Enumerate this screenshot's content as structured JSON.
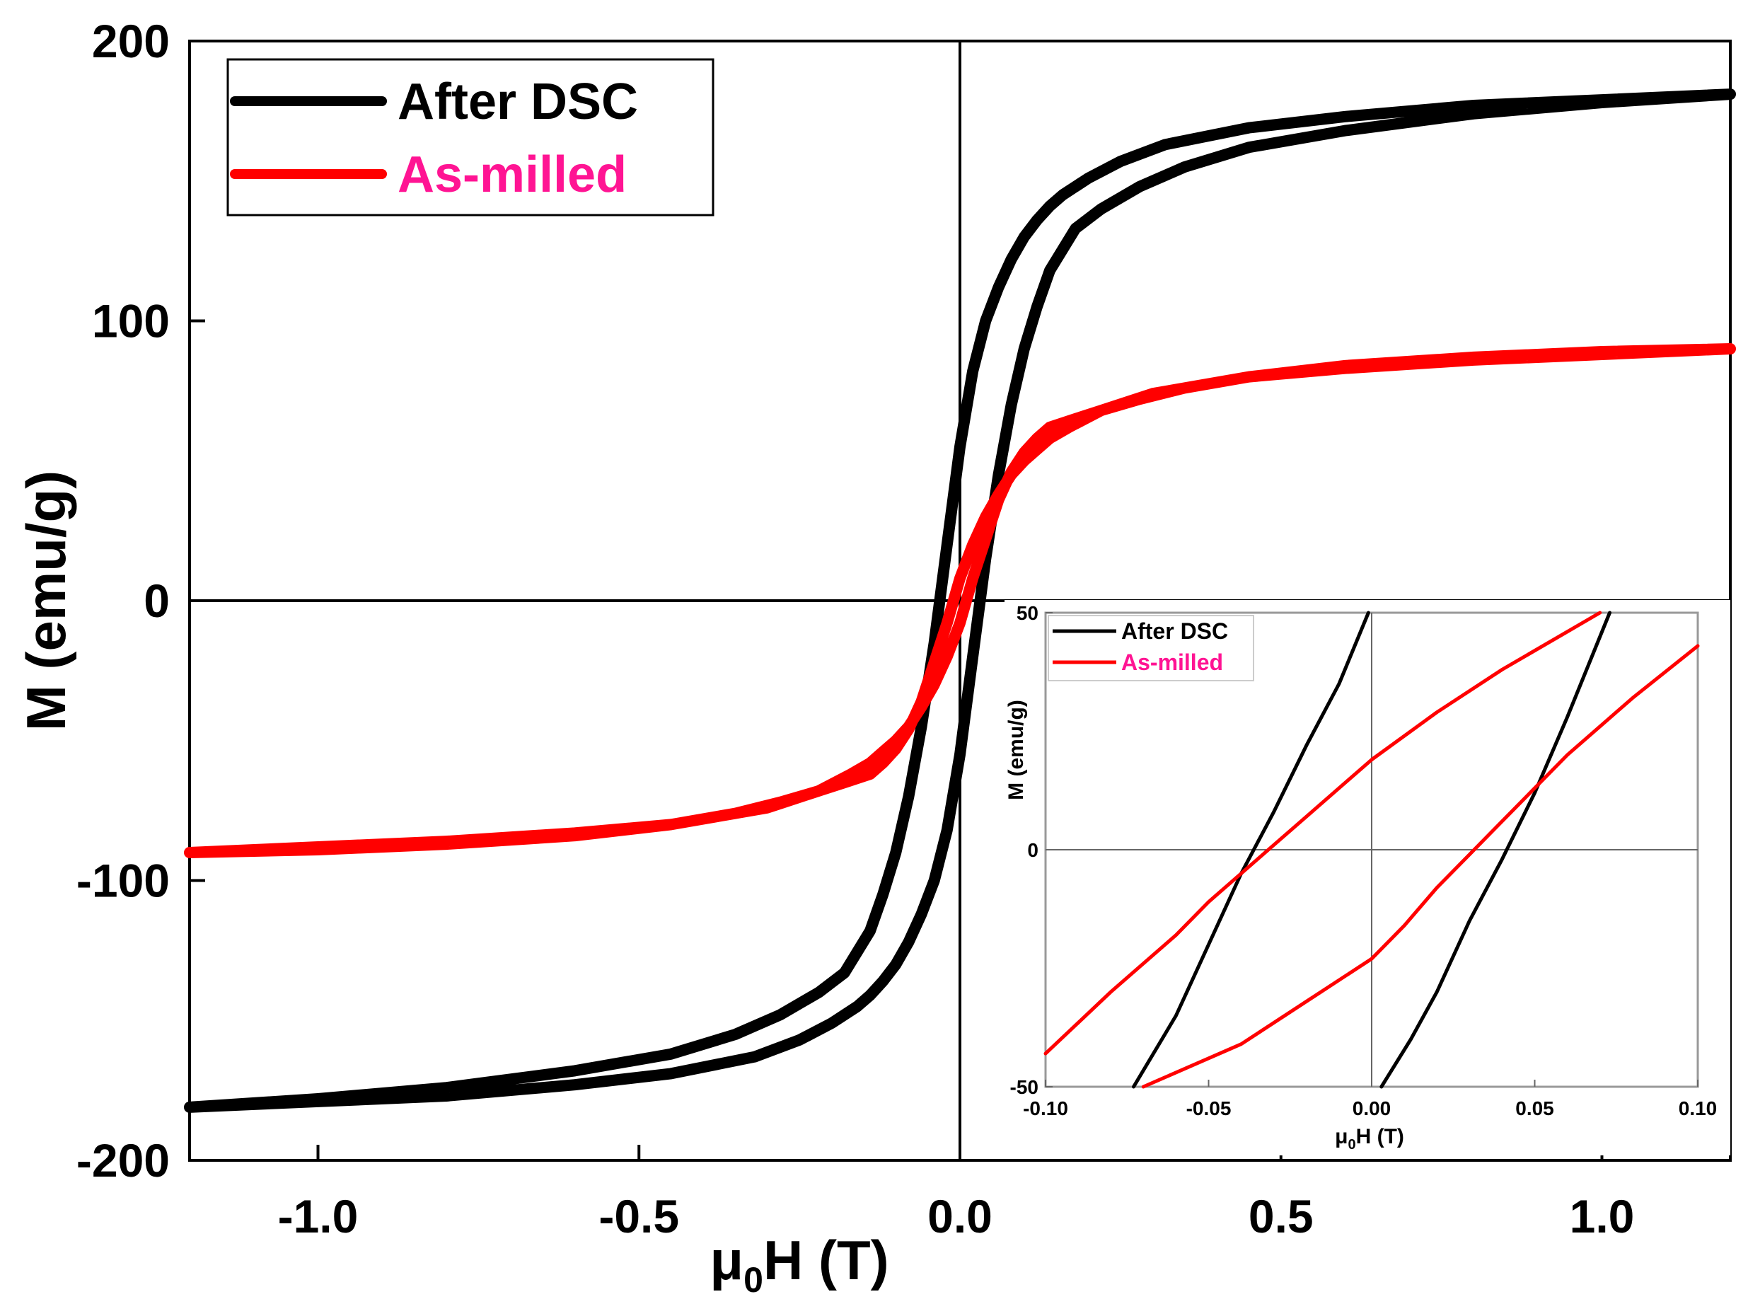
{
  "colors": {
    "after_dsc": "#000000",
    "as_milled": "#ff0000",
    "as_milled_label": "#ff1493"
  },
  "chart_data": [
    {
      "type": "line",
      "xlabel_mu": "μ",
      "xlabel_sub": "0",
      "xlabel_rest": "H (T)",
      "ylabel": "M (emu/g)",
      "xlim": [
        -1.2,
        1.2
      ],
      "ylim": [
        -200,
        200
      ],
      "x_ticks": [
        -1.0,
        -0.5,
        0.0,
        0.5,
        1.0
      ],
      "x_tick_labels": [
        "-1.0",
        "-0.5",
        "0.0",
        "0.5",
        "1.0"
      ],
      "y_ticks": [
        -200,
        -100,
        0,
        100,
        200
      ],
      "y_tick_labels": [
        "-200",
        "-100",
        "0",
        "100",
        "200"
      ],
      "legend_position": "top-left",
      "series": [
        {
          "name": "After DSC",
          "color": "#000000",
          "x": [
            -1.2,
            -1.0,
            -0.8,
            -0.6,
            -0.45,
            -0.35,
            -0.28,
            -0.22,
            -0.18,
            -0.14,
            -0.12,
            -0.1,
            -0.08,
            -0.06,
            -0.04,
            -0.02,
            0.0,
            0.02,
            0.04,
            0.06,
            0.08,
            0.1,
            0.12,
            0.14,
            0.16,
            0.2,
            0.25,
            0.32,
            0.45,
            0.6,
            0.8,
            1.0,
            1.2,
            1.2,
            1.0,
            0.8,
            0.6,
            0.45,
            0.35,
            0.28,
            0.22,
            0.18,
            0.14,
            0.12,
            0.1,
            0.08,
            0.06,
            0.04,
            0.02,
            0.0,
            -0.02,
            -0.04,
            -0.06,
            -0.08,
            -0.1,
            -0.12,
            -0.14,
            -0.16,
            -0.2,
            -0.25,
            -0.32,
            -0.45,
            -0.6,
            -0.8,
            -1.0,
            -1.2
          ],
          "y": [
            -181,
            -178,
            -174,
            -168,
            -162,
            -155,
            -148,
            -140,
            -133,
            -118,
            -105,
            -90,
            -70,
            -45,
            -15,
            20,
            55,
            82,
            100,
            112,
            122,
            130,
            136,
            141,
            145,
            151,
            157,
            163,
            169,
            173,
            177,
            179,
            181,
            181,
            178,
            174,
            168,
            162,
            155,
            148,
            140,
            133,
            118,
            105,
            90,
            70,
            45,
            15,
            -20,
            -55,
            -82,
            -100,
            -112,
            -122,
            -130,
            -136,
            -141,
            -145,
            -151,
            -157,
            -163,
            -169,
            -173,
            -177,
            -179,
            -181
          ]
        },
        {
          "name": "As-milled",
          "color": "#ff0000",
          "x": [
            -1.2,
            -1.0,
            -0.8,
            -0.6,
            -0.45,
            -0.35,
            -0.28,
            -0.22,
            -0.18,
            -0.14,
            -0.12,
            -0.1,
            -0.08,
            -0.06,
            -0.04,
            -0.02,
            0.0,
            0.02,
            0.04,
            0.06,
            0.08,
            0.1,
            0.12,
            0.14,
            0.17,
            0.22,
            0.3,
            0.45,
            0.6,
            0.8,
            1.0,
            1.2,
            1.2,
            1.0,
            0.8,
            0.6,
            0.45,
            0.35,
            0.28,
            0.22,
            0.18,
            0.14,
            0.12,
            0.1,
            0.08,
            0.06,
            0.04,
            0.02,
            0.0,
            -0.02,
            -0.04,
            -0.06,
            -0.08,
            -0.1,
            -0.12,
            -0.14,
            -0.17,
            -0.22,
            -0.3,
            -0.45,
            -0.6,
            -0.8,
            -1.0,
            -1.2
          ],
          "y": [
            -90,
            -88,
            -86,
            -83,
            -80,
            -76,
            -72,
            -68,
            -65,
            -62,
            -58,
            -53,
            -46,
            -36,
            -22,
            -8,
            8,
            20,
            30,
            38,
            45,
            50,
            54,
            58,
            62,
            68,
            74,
            80,
            84,
            87,
            89,
            90,
            90,
            88,
            86,
            83,
            80,
            76,
            72,
            68,
            65,
            62,
            58,
            53,
            46,
            36,
            22,
            8,
            -8,
            -20,
            -30,
            -38,
            -45,
            -50,
            -54,
            -58,
            -62,
            -68,
            -74,
            -80,
            -84,
            -87,
            -89,
            -90
          ]
        }
      ]
    },
    {
      "type": "line",
      "xlabel_mu": "μ",
      "xlabel_sub": "0",
      "xlabel_rest": "H (T)",
      "ylabel": "M (emu/g)",
      "xlim": [
        -0.1,
        0.1
      ],
      "ylim": [
        -50,
        50
      ],
      "x_ticks": [
        -0.1,
        -0.05,
        0.0,
        0.05,
        0.1
      ],
      "x_tick_labels": [
        "-0.10",
        "-0.05",
        "0.00",
        "0.05",
        "0.10"
      ],
      "y_ticks": [
        -50,
        0,
        50
      ],
      "y_tick_labels": [
        "-50",
        "0",
        "50"
      ],
      "legend_position": "top-left",
      "series": [
        {
          "name": "After DSC",
          "color": "#000000",
          "x": [
            -0.073,
            -0.06,
            -0.05,
            -0.04,
            -0.03,
            -0.02,
            -0.01,
            -0.001,
            null,
            0.003,
            0.012,
            0.02,
            0.03,
            0.04,
            0.05,
            0.06,
            0.073
          ],
          "y": [
            -50,
            -35,
            -20,
            -5,
            8,
            22,
            35,
            50,
            null,
            -50,
            -40,
            -30,
            -15,
            -2,
            12,
            28,
            50
          ]
        },
        {
          "name": "As-milled",
          "color": "#ff0000",
          "x": [
            -0.1,
            -0.08,
            -0.06,
            -0.05,
            -0.04,
            -0.03,
            -0.02,
            -0.01,
            0.0,
            0.02,
            0.04,
            0.06,
            0.07,
            null,
            -0.07,
            -0.04,
            -0.02,
            0.0,
            0.01,
            0.02,
            0.03,
            0.04,
            0.05,
            0.06,
            0.08,
            0.1
          ],
          "y": [
            -43,
            -30,
            -18,
            -11,
            -5,
            1,
            7,
            13,
            19,
            29,
            38,
            46,
            50,
            null,
            -50,
            -41,
            -32,
            -23,
            -16,
            -8,
            -1,
            6,
            13,
            20,
            32,
            43
          ]
        }
      ]
    }
  ]
}
